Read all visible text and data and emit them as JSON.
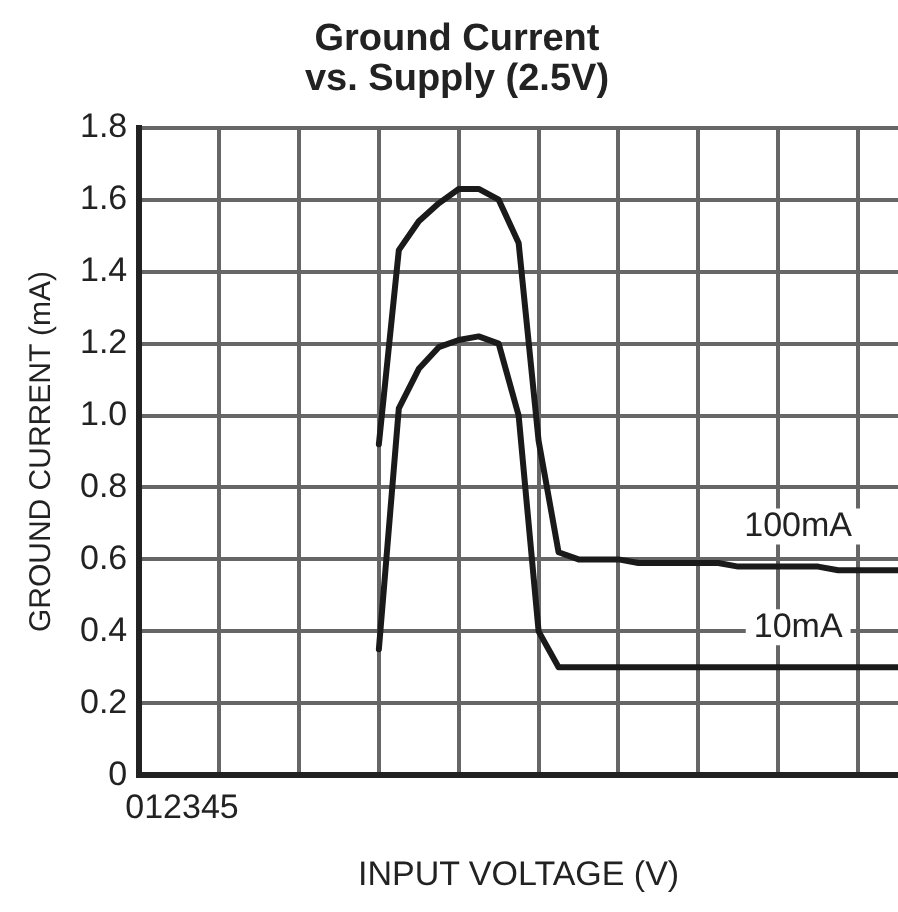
{
  "chart_data": {
    "type": "line",
    "title": "Ground Current\nvs. Supply (2.5V)",
    "xlabel": "INPUT VOLTAGE (V)",
    "ylabel": "GROUND CURRENT (mA)",
    "categories": [
      null,
      null,
      null,
      null,
      null,
      null,
      null,
      null,
      null,
      null,
      null,
      null,
      null,
      null,
      null,
      null,
      null,
      null,
      null,
      null,
      null,
      null,
      null,
      null,
      null,
      null,
      null,
      null,
      null,
      null,
      null,
      null,
      null,
      null,
      null,
      null,
      null,
      null,
      null
    ],
    "ylim": [
      0,
      1.8
    ],
    "yticks": [
      {
        "value": 0,
        "label": "0"
      },
      {
        "value": 0.2,
        "label": "0.2"
      },
      {
        "value": 0.4,
        "label": "0.4"
      },
      {
        "value": 0.6,
        "label": "0.6"
      },
      {
        "value": 0.8,
        "label": "0.8"
      },
      {
        "value": 1.0,
        "label": "1.0"
      },
      {
        "value": 1.2,
        "label": "1.2"
      },
      {
        "value": 1.4,
        "label": "1.4"
      },
      {
        "value": 1.6,
        "label": "1.6"
      },
      {
        "value": 1.8,
        "label": "1.8"
      }
    ],
    "grid": true,
    "legend": false,
    "marker": "none",
    "line_style": "solid",
    "tick_labels": "y",
    "series": [
      {
        "name": "100mA",
        "color": "#1a1a1a",
        "values": [
          null,
          null,
          null,
          null,
          null,
          null,
          null,
          null,
          null,
          null,
          null,
          null,
          0.92,
          1.46,
          1.54,
          1.59,
          1.63,
          1.63,
          1.6,
          1.48,
          0.93,
          0.62,
          0.6,
          0.6,
          0.6,
          0.59,
          0.59,
          0.59,
          0.59,
          0.59,
          0.58,
          0.58,
          0.58,
          0.58,
          0.58,
          0.57,
          0.57,
          0.57,
          0.57
        ]
      },
      {
        "name": "10mA",
        "color": "#1a1a1a",
        "values": [
          null,
          null,
          null,
          null,
          null,
          null,
          null,
          null,
          null,
          null,
          null,
          null,
          0.35,
          1.02,
          1.13,
          1.19,
          1.21,
          1.22,
          1.2,
          1.0,
          0.4,
          0.3,
          0.3,
          0.3,
          0.3,
          0.3,
          0.3,
          0.3,
          0.3,
          0.3,
          0.3,
          0.3,
          0.3,
          0.3,
          0.3,
          0.3,
          0.3,
          0.3,
          0.3
        ]
      }
    ],
    "annotations": [
      "012345"
    ]
  }
}
